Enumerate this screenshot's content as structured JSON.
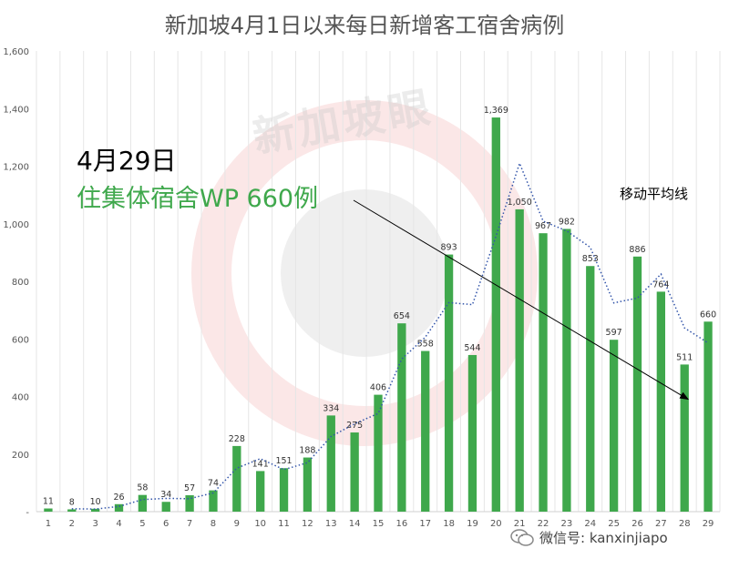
{
  "title": "新加坡4月1日以来每日新增客工宿舍病例",
  "annotation": {
    "date": "4月29日",
    "text": "住集体宿舍WP 660例"
  },
  "legend": {
    "moving_average": "移动平均线"
  },
  "watermark": "新加坡眼",
  "credit": {
    "icon": "wechat-icon",
    "text": "微信号: kanxinjiapo"
  },
  "colors": {
    "bar": "#3fa84c",
    "moving_average": "#3355aa",
    "title": "#555555",
    "annotation_highlight": "#3fa84c"
  },
  "chart_data": {
    "type": "bar",
    "title": "新加坡4月1日以来每日新增客工宿舍病例",
    "categories": [
      "1",
      "2",
      "3",
      "4",
      "5",
      "6",
      "7",
      "8",
      "9",
      "10",
      "11",
      "12",
      "13",
      "14",
      "15",
      "16",
      "17",
      "18",
      "19",
      "20",
      "21",
      "22",
      "23",
      "24",
      "25",
      "26",
      "27",
      "28",
      "29"
    ],
    "series": [
      {
        "values": [
          11,
          8,
          10,
          26,
          58,
          34,
          57,
          74,
          228,
          141,
          151,
          188,
          334,
          275,
          406,
          654,
          558,
          893,
          544,
          1369,
          1050,
          967,
          982,
          853,
          597,
          886,
          764,
          511,
          660
        ],
        "data_labels": [
          "11",
          "8",
          "10",
          "26",
          "58",
          "34",
          "57",
          "74",
          "228",
          "141",
          "151",
          "188",
          "334",
          "275",
          "406",
          "654",
          "558",
          "893",
          "544",
          "1,369",
          "1,050",
          "967",
          "982",
          "853",
          "597",
          "886",
          "764",
          "511",
          "660"
        ]
      },
      {
        "name": "移动平均线",
        "type": "line",
        "style": "dotted",
        "values": [
          null,
          10,
          9,
          18,
          42,
          46,
          45,
          65,
          151,
          184,
          146,
          170,
          261,
          305,
          341,
          530,
          606,
          726,
          719,
          957,
          1210,
          1009,
          975,
          918,
          725,
          742,
          825,
          638,
          586
        ]
      }
    ],
    "ylim": [
      0,
      1600
    ],
    "yticks": [
      0,
      200,
      400,
      600,
      800,
      1000,
      1200,
      1400,
      1600
    ],
    "ytick_labels": [
      "-",
      "200",
      "400",
      "600",
      "800",
      "1,000",
      "1,200",
      "1,400",
      "1,600"
    ],
    "grid": "vertical",
    "legend_placement": "top-right"
  }
}
